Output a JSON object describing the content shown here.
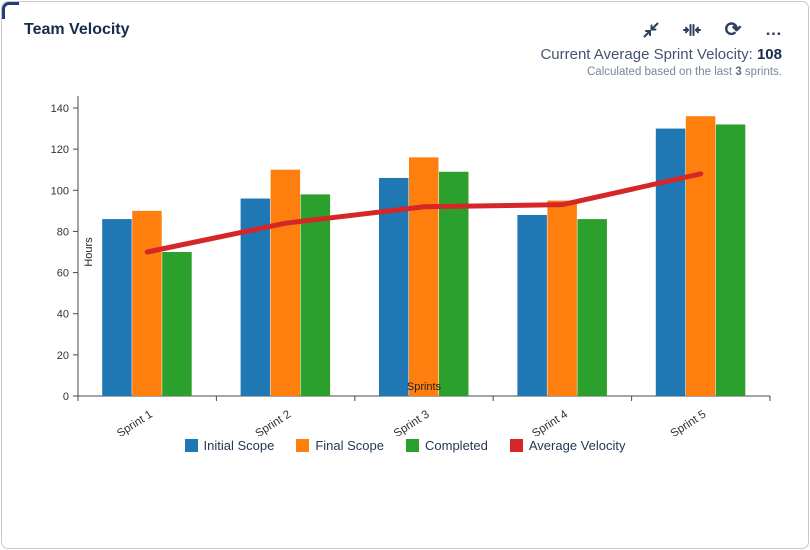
{
  "card": {
    "title": "Team Velocity",
    "toolbar": {
      "collapse_icon": "collapse-diagonal-icon",
      "fit_icon": "compress-horizontal-icon",
      "refresh_glyph": "⟳",
      "more_glyph": "…"
    },
    "summary": {
      "label": "Current Average Sprint Velocity: ",
      "value": "108",
      "sub_prefix": "Calculated based on the last ",
      "sub_bold": "3",
      "sub_suffix": " sprints."
    }
  },
  "chart_data": {
    "type": "bar",
    "title": "Team Velocity",
    "xlabel": "Sprints",
    "ylabel": "Hours",
    "categories": [
      "Sprint 1",
      "Sprint 2",
      "Sprint 3",
      "Sprint 4",
      "Sprint 5"
    ],
    "series": [
      {
        "name": "Initial Scope",
        "type": "bar",
        "color": "#1f77b4",
        "values": [
          86,
          96,
          106,
          88,
          130
        ]
      },
      {
        "name": "Final Scope",
        "type": "bar",
        "color": "#ff7f0e",
        "values": [
          90,
          110,
          116,
          95,
          136
        ]
      },
      {
        "name": "Completed",
        "type": "bar",
        "color": "#2ca02c",
        "values": [
          70,
          98,
          109,
          86,
          132
        ]
      },
      {
        "name": "Average Velocity",
        "type": "line",
        "color": "#d62728",
        "values": [
          70,
          84,
          92,
          93,
          108
        ]
      }
    ],
    "ylim": [
      0,
      140
    ],
    "yticks": [
      0,
      20,
      40,
      60,
      80,
      100,
      120,
      140
    ],
    "grid": false,
    "legend_position": "bottom"
  }
}
